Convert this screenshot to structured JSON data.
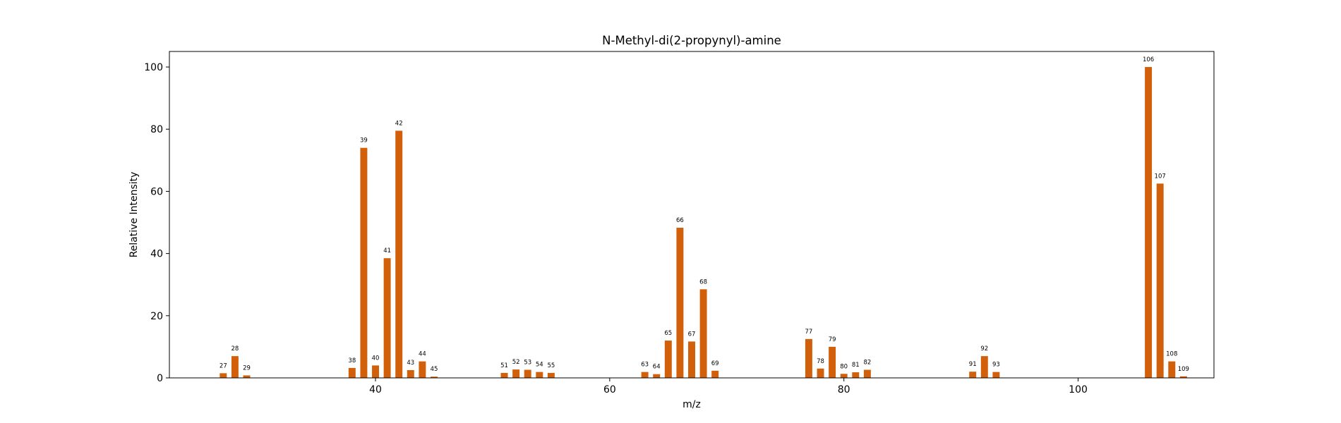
{
  "chart_data": {
    "type": "bar",
    "title": "N-Methyl-di(2-propynyl)-amine",
    "xlabel": "m/z",
    "ylabel": "Relative Intensity",
    "xlim": [
      22.4,
      111.6
    ],
    "ylim": [
      0,
      105
    ],
    "xticks": [
      40,
      60,
      80,
      100
    ],
    "yticks": [
      0,
      20,
      40,
      60,
      80,
      100
    ],
    "grid": false,
    "bar_color": "#d2600a",
    "x": [
      27,
      28,
      29,
      38,
      39,
      40,
      41,
      42,
      43,
      44,
      45,
      51,
      52,
      53,
      54,
      55,
      63,
      64,
      65,
      66,
      67,
      68,
      69,
      77,
      78,
      79,
      80,
      81,
      82,
      91,
      92,
      93,
      106,
      107,
      108,
      109
    ],
    "values": [
      1.5,
      7.0,
      0.8,
      3.2,
      74.0,
      4.0,
      38.5,
      79.5,
      2.5,
      5.3,
      0.4,
      1.6,
      2.7,
      2.6,
      1.9,
      1.6,
      1.9,
      1.2,
      12.0,
      48.3,
      11.7,
      28.5,
      2.3,
      12.5,
      3.0,
      10.0,
      1.3,
      1.8,
      2.6,
      2.0,
      7.0,
      1.9,
      100.0,
      62.5,
      5.3,
      0.5
    ],
    "bar_labels": [
      "27",
      "28",
      "29",
      "38",
      "39",
      "40",
      "41",
      "42",
      "43",
      "44",
      "45",
      "51",
      "52",
      "53",
      "54",
      "55",
      "63",
      "64",
      "65",
      "66",
      "67",
      "68",
      "69",
      "77",
      "78",
      "79",
      "80",
      "81",
      "82",
      "91",
      "92",
      "93",
      "106",
      "107",
      "108",
      "109"
    ]
  }
}
